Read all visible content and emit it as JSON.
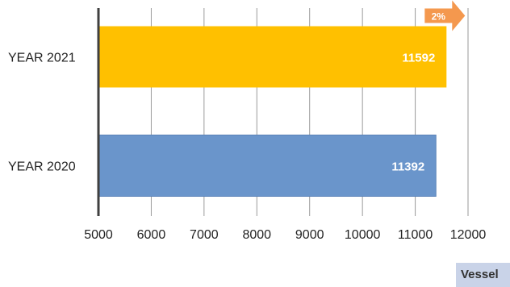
{
  "chart_data": {
    "type": "bar",
    "orientation": "horizontal",
    "categories": [
      "YEAR 2021",
      "YEAR 2020"
    ],
    "values": [
      11592,
      11392
    ],
    "data_labels": [
      "11592",
      "11392"
    ],
    "bar_colors": [
      "#ffc000",
      "#6a95cb"
    ],
    "xlim": [
      5000,
      12000
    ],
    "xticks": [
      "5000",
      "6000",
      "7000",
      "8000",
      "9000",
      "10000",
      "11000",
      "12000"
    ],
    "xlabel": "",
    "ylabel": "",
    "grid": "vertical",
    "annotation": {
      "text": "2%",
      "color": "#f4984e",
      "attached_to": "YEAR 2021"
    },
    "legend": {
      "label": "Vessel",
      "placement": "bottom-right"
    }
  }
}
